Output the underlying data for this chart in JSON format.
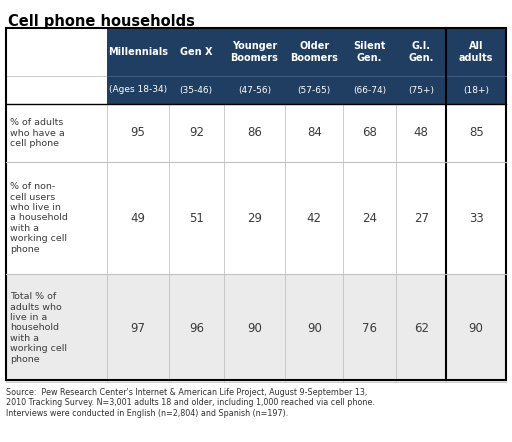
{
  "title": "Cell phone households",
  "col_headers": [
    "Millennials",
    "Gen X",
    "Younger\nBoomers",
    "Older\nBoomers",
    "Silent\nGen.",
    "G.I.\nGen.",
    "All\nadults"
  ],
  "col_subheaders": [
    "(Ages 18-34)",
    "(35-46)",
    "(47-56)",
    "(57-65)",
    "(66-74)",
    "(75+)",
    "(18+)"
  ],
  "row_labels": [
    "% of adults\nwho have a\ncell phone",
    "% of non-\ncell users\nwho live in\na household\nwith a\nworking cell\nphone",
    "Total % of\nadults who\nlive in a\nhousehold\nwith a\nworking cell\nphone"
  ],
  "data": [
    [
      "95",
      "92",
      "86",
      "84",
      "68",
      "48",
      "85"
    ],
    [
      "49",
      "51",
      "29",
      "42",
      "24",
      "27",
      "33"
    ],
    [
      "97",
      "96",
      "90",
      "90",
      "76",
      "62",
      "90"
    ]
  ],
  "row_bg": [
    "#ffffff",
    "#ffffff",
    "#ebebeb"
  ],
  "header_bg": "#1f3e62",
  "header_fg": "#ffffff",
  "cell_fg": "#3c3c3c",
  "source_text": "Source:  Pew Research Center's Internet & American Life Project, August 9-September 13,\n2010 Tracking Survey. N=3,001 adults 18 and older, including 1,000 reached via cell phone.\nInterviews were conducted in English (n=2,804) and Spanish (n=197).",
  "border_dark": "#000000",
  "border_light": "#c0c0c0"
}
